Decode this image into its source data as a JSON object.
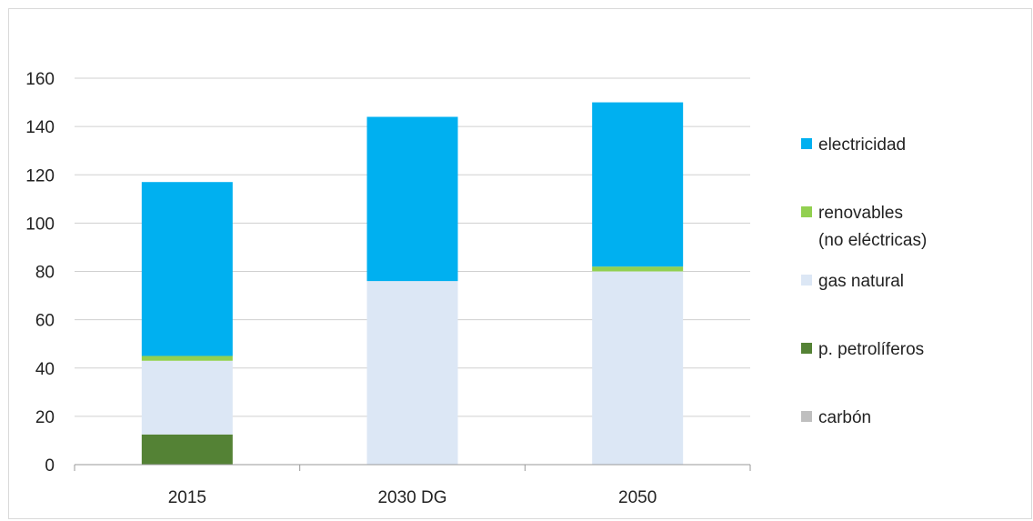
{
  "chart_data": {
    "type": "bar",
    "stacked": true,
    "categories": [
      "2015",
      "2030 DG",
      "2050"
    ],
    "ylim": [
      0,
      160
    ],
    "yticks": [
      "0",
      "20",
      "40",
      "60",
      "80",
      "100",
      "120",
      "140",
      "160"
    ],
    "grid": true,
    "legend_position": "right",
    "series": [
      {
        "key": "carbon",
        "name": "carbón",
        "color": "#bfbfbf",
        "values": [
          0,
          0,
          0
        ]
      },
      {
        "key": "petroliferos",
        "name": "p. petrolíferos",
        "color": "#548235",
        "values": [
          12.5,
          0,
          0
        ]
      },
      {
        "key": "gas",
        "name": "gas natural",
        "color": "#dce7f5",
        "values": [
          30.5,
          76,
          80
        ]
      },
      {
        "key": "renovables",
        "name": "renovables",
        "name_line2": "(no eléctricas)",
        "color": "#92d050",
        "values": [
          2,
          0,
          2
        ]
      },
      {
        "key": "electricidad",
        "name": "electricidad",
        "color": "#00b0f0",
        "values": [
          72,
          68,
          68
        ]
      }
    ]
  }
}
